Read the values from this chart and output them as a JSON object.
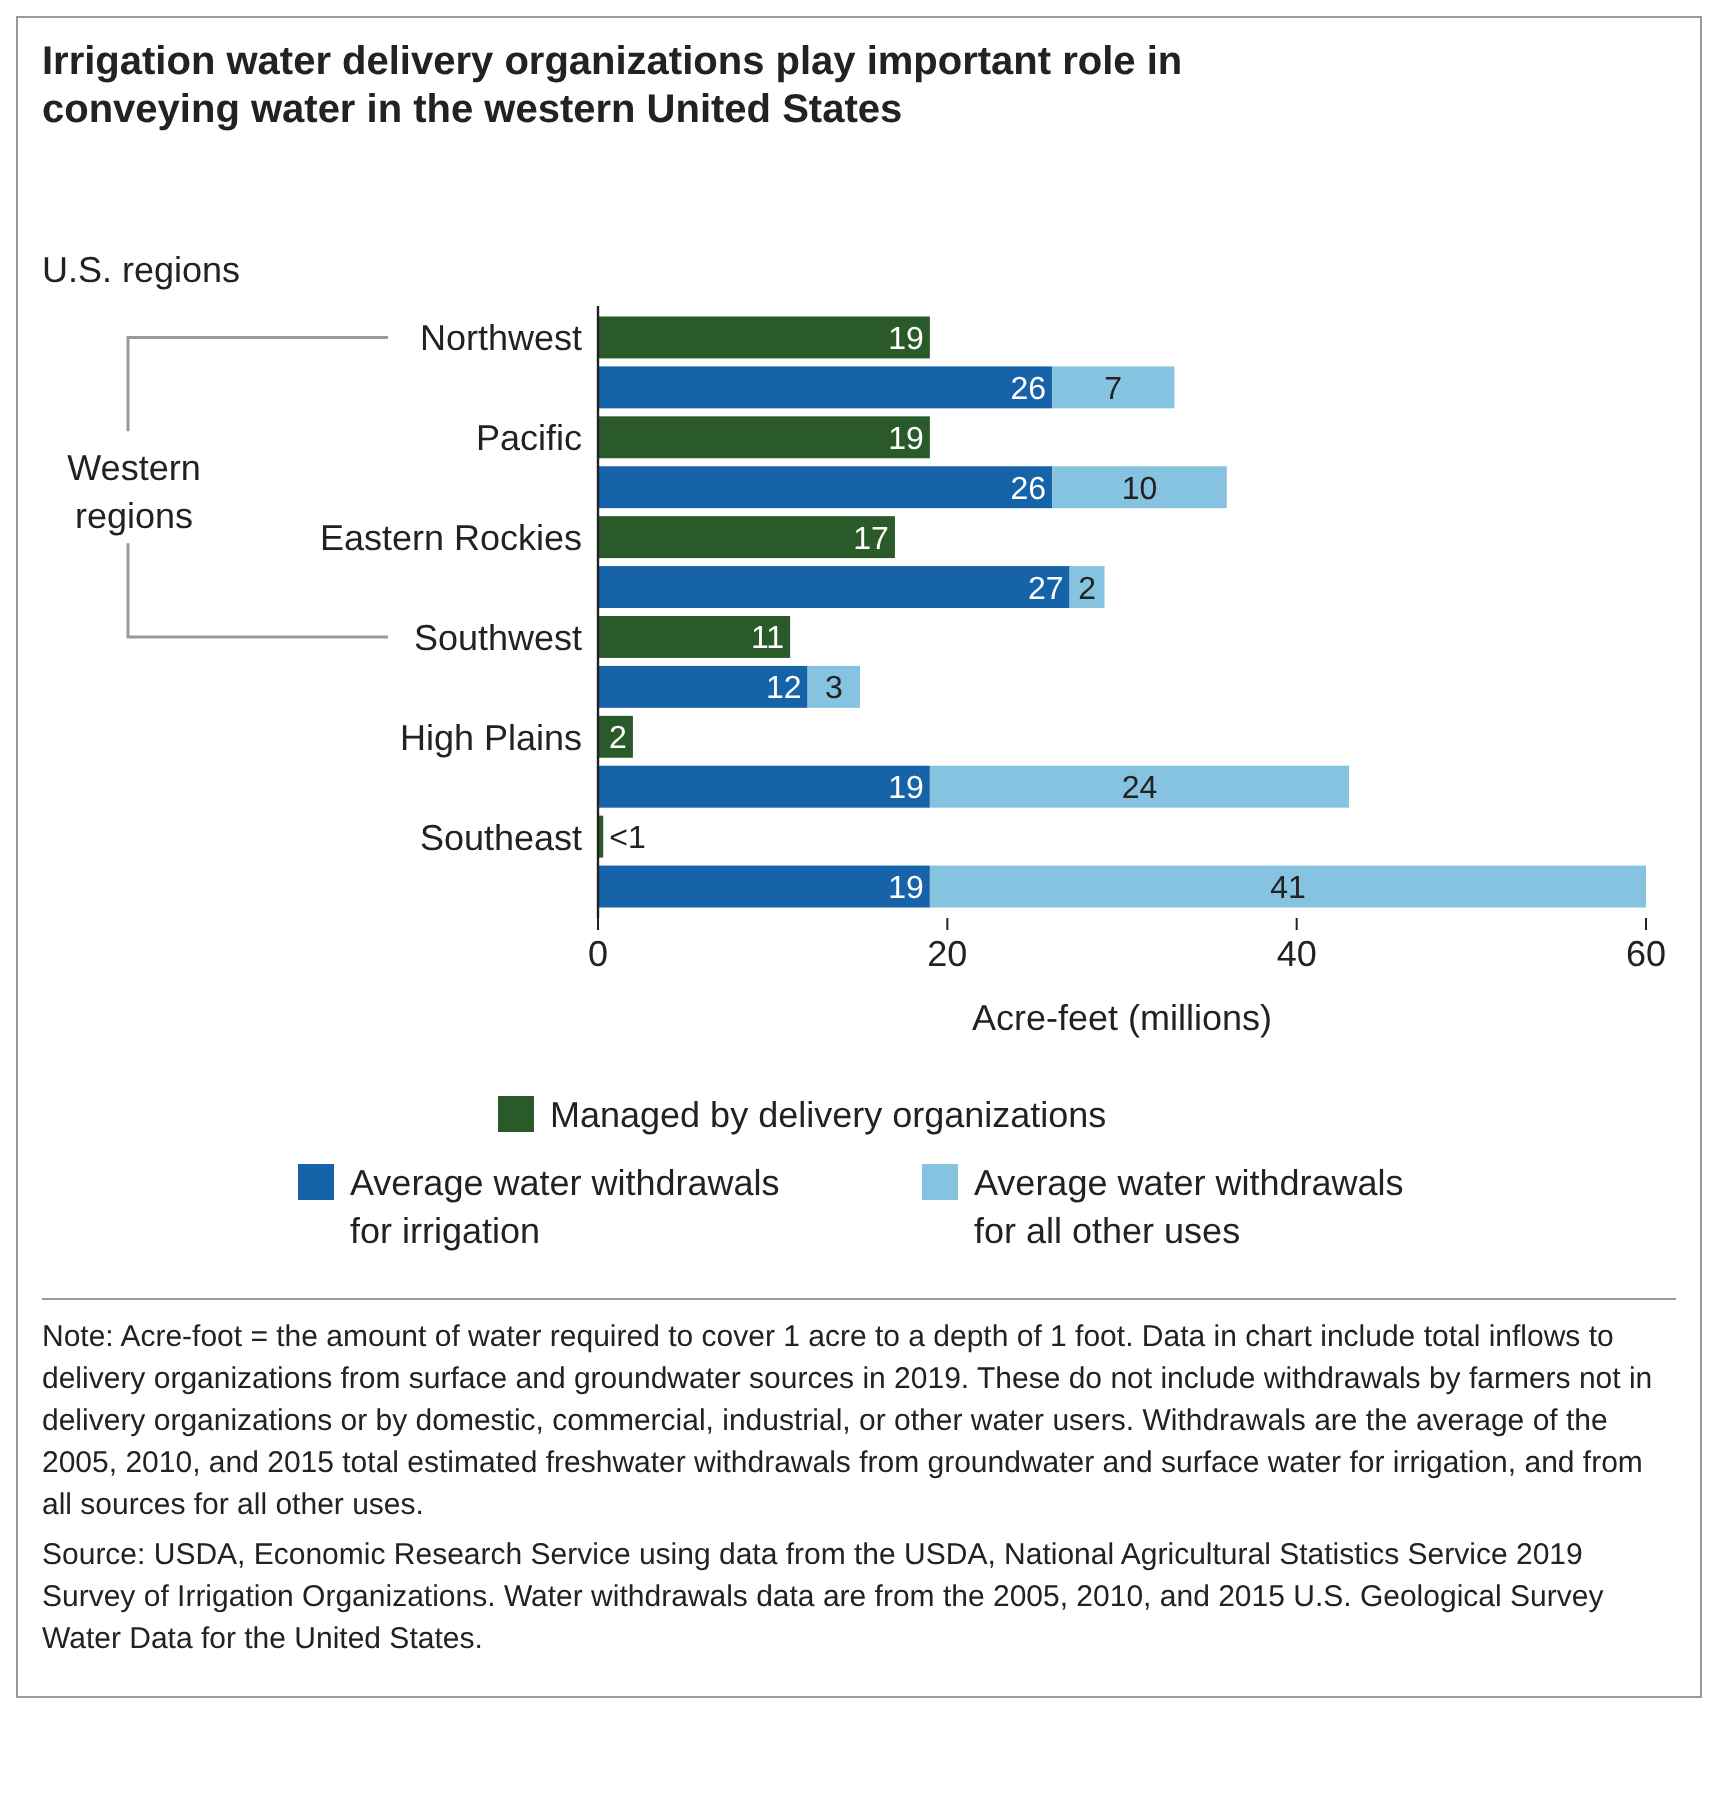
{
  "chart_data": {
    "type": "bar",
    "orientation": "horizontal",
    "stacked": true,
    "title": "Irrigation water delivery organizations play important role in conveying water in the western United States",
    "ylabel": "U.S. regions",
    "xlabel": "Acre-feet (millions)",
    "categories": [
      "Northwest",
      null,
      "Pacific",
      null,
      "Eastern Rockies",
      null,
      "Southwest",
      null,
      "High Plains",
      null,
      "Southeast",
      null
    ],
    "series": [
      {
        "name": "Managed by delivery organizations",
        "color": "#2b5a2a",
        "values": [
          19,
          null,
          19,
          null,
          17,
          null,
          11,
          null,
          2,
          null,
          0.3,
          null
        ],
        "value_labels": [
          "19",
          null,
          "19",
          null,
          "17",
          null,
          "11",
          null,
          "2",
          null,
          "<1",
          null
        ]
      },
      {
        "name": "Average water withdrawals for irrigation",
        "color": "#1763aa",
        "values": [
          null,
          26,
          null,
          26,
          null,
          27,
          null,
          12,
          null,
          19,
          null,
          19
        ],
        "value_labels": [
          null,
          "26",
          null,
          "26",
          null,
          "27",
          null,
          "12",
          null,
          "19",
          null,
          "19"
        ]
      },
      {
        "name": "Average water withdrawals for all other uses",
        "color": "#86c3e0",
        "values": [
          null,
          7,
          null,
          10,
          null,
          2,
          null,
          3,
          null,
          24,
          null,
          41
        ],
        "value_labels": [
          null,
          "7",
          null,
          "10",
          null,
          "2",
          null,
          "3",
          null,
          "24",
          null,
          "41"
        ]
      }
    ],
    "xlim": [
      0,
      60
    ],
    "xticks": [
      0,
      20,
      40,
      60
    ],
    "grid": false,
    "legend": "bottom",
    "annotations": [
      "Western regions",
      "Note: Acre-foot = the amount of water required to cover 1 acre to a depth of 1 foot. Data in chart include total inflows to delivery organizations from surface and groundwater sources in 2019. These do not include withdrawals by farmers not in delivery organizations or by domestic, commercial, industrial, or other water users. Withdrawals are the average of the 2005, 2010, and 2015 total estimated freshwater withdrawals from groundwater and surface water for irrigation, and from all sources for all other uses.",
      "Source: USDA, Economic Research Service using data from the USDA, National Agricultural Statistics Service 2019 Survey of Irrigation Organizations. Water withdrawals data are from the 2005, 2010, and 2015 U.S. Geological Survey Water Data for the United States."
    ]
  }
}
